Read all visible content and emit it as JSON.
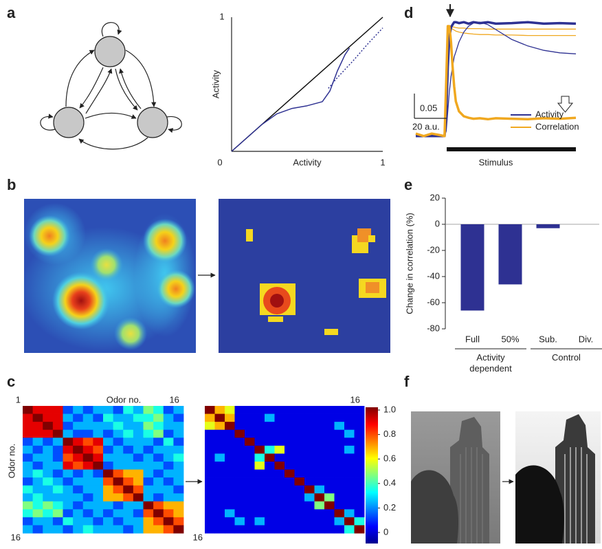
{
  "panel_labels": [
    "a",
    "b",
    "c",
    "d",
    "e",
    "f"
  ],
  "chart_data": [
    {
      "type": "line",
      "xlabel": "Activity",
      "ylabel": "Activity",
      "xlim": [
        0,
        1
      ],
      "ylim": [
        0,
        1
      ],
      "xticks": [
        0,
        1
      ],
      "yticks": [
        1
      ],
      "series": [
        {
          "color": "#111111",
          "x": [
            0,
            1
          ],
          "values": [
            0,
            1
          ]
        },
        {
          "color": "#2e3192",
          "x": [
            0,
            0.1,
            0.2,
            0.3,
            0.4,
            0.5,
            0.6,
            0.65,
            0.7,
            0.75,
            0.78
          ],
          "values": [
            0,
            0.1,
            0.2,
            0.28,
            0.32,
            0.34,
            0.37,
            0.45,
            0.6,
            0.72,
            0.77
          ]
        },
        {
          "color": "#2e3192",
          "dash": true,
          "x": [
            0.64,
            0.7,
            0.8,
            0.9,
            1
          ],
          "values": [
            0.47,
            0.55,
            0.67,
            0.8,
            0.92
          ]
        }
      ]
    },
    {
      "type": "heatmap",
      "xlabel": "Odor no.",
      "ylabel": "Odor no.",
      "xticks": [
        1,
        16
      ],
      "yticks": [
        16
      ],
      "clim": [
        0,
        1
      ],
      "z": [
        [
          1,
          0.9,
          0.9,
          0.9,
          0.2,
          0.3,
          0.2,
          0.3,
          0.3,
          0.2,
          0.4,
          0.3,
          0.5,
          0.4,
          0.2,
          0.3
        ],
        [
          0.9,
          1,
          0.9,
          0.9,
          0.3,
          0.2,
          0.3,
          0.2,
          0.4,
          0.3,
          0.3,
          0.4,
          0.4,
          0.5,
          0.3,
          0.2
        ],
        [
          0.9,
          0.9,
          1,
          0.9,
          0.2,
          0.3,
          0.3,
          0.3,
          0.3,
          0.4,
          0.3,
          0.3,
          0.5,
          0.4,
          0.3,
          0.3
        ],
        [
          0.9,
          0.9,
          0.9,
          1,
          0.3,
          0.2,
          0.2,
          0.3,
          0.2,
          0.3,
          0.4,
          0.3,
          0.4,
          0.5,
          0.2,
          0.3
        ],
        [
          0.2,
          0.3,
          0.2,
          0.3,
          1,
          0.9,
          0.8,
          0.9,
          0.3,
          0.2,
          0.3,
          0.3,
          0.3,
          0.2,
          0.4,
          0.2
        ],
        [
          0.3,
          0.2,
          0.3,
          0.2,
          0.9,
          1,
          0.9,
          0.8,
          0.2,
          0.3,
          0.2,
          0.3,
          0.2,
          0.3,
          0.3,
          0.3
        ],
        [
          0.2,
          0.3,
          0.3,
          0.2,
          0.8,
          0.9,
          1,
          0.9,
          0.3,
          0.3,
          0.3,
          0.2,
          0.3,
          0.2,
          0.3,
          0.4
        ],
        [
          0.3,
          0.2,
          0.3,
          0.3,
          0.9,
          0.8,
          0.9,
          1,
          0.2,
          0.3,
          0.3,
          0.3,
          0.3,
          0.3,
          0.2,
          0.3
        ],
        [
          0.3,
          0.4,
          0.3,
          0.2,
          0.3,
          0.2,
          0.3,
          0.2,
          1,
          0.8,
          0.7,
          0.7,
          0.3,
          0.2,
          0.3,
          0.3
        ],
        [
          0.2,
          0.3,
          0.4,
          0.3,
          0.2,
          0.3,
          0.3,
          0.3,
          0.8,
          1,
          0.8,
          0.7,
          0.2,
          0.3,
          0.2,
          0.3
        ],
        [
          0.4,
          0.3,
          0.3,
          0.4,
          0.3,
          0.2,
          0.3,
          0.3,
          0.7,
          0.8,
          1,
          0.8,
          0.3,
          0.3,
          0.3,
          0.2
        ],
        [
          0.3,
          0.4,
          0.3,
          0.3,
          0.3,
          0.3,
          0.2,
          0.3,
          0.7,
          0.7,
          0.8,
          1,
          0.3,
          0.2,
          0.3,
          0.3
        ],
        [
          0.5,
          0.4,
          0.5,
          0.4,
          0.3,
          0.2,
          0.3,
          0.3,
          0.3,
          0.2,
          0.3,
          0.3,
          1,
          0.8,
          0.7,
          0.7
        ],
        [
          0.4,
          0.5,
          0.4,
          0.5,
          0.2,
          0.3,
          0.2,
          0.3,
          0.2,
          0.3,
          0.3,
          0.2,
          0.8,
          1,
          0.8,
          0.7
        ],
        [
          0.2,
          0.3,
          0.3,
          0.2,
          0.4,
          0.3,
          0.3,
          0.2,
          0.3,
          0.2,
          0.3,
          0.3,
          0.7,
          0.8,
          1,
          0.8
        ],
        [
          0.3,
          0.2,
          0.3,
          0.3,
          0.2,
          0.3,
          0.4,
          0.3,
          0.3,
          0.3,
          0.2,
          0.3,
          0.7,
          0.7,
          0.8,
          1
        ]
      ]
    },
    {
      "type": "heatmap",
      "xticks": [
        16
      ],
      "yticks": [
        16
      ],
      "clim": [
        0,
        1
      ],
      "cticks": [
        0,
        0.2,
        0.4,
        0.6,
        0.8,
        {
          "value": 1,
          "label": "1.0"
        }
      ],
      "z": [
        [
          1,
          0.7,
          0.6,
          0.1,
          0.1,
          0.1,
          0.1,
          0.1,
          0.1,
          0.1,
          0.1,
          0.1,
          0.1,
          0.1,
          0.1,
          0.1
        ],
        [
          0.7,
          1,
          0.7,
          0.1,
          0.1,
          0.1,
          0.3,
          0.1,
          0.1,
          0.1,
          0.1,
          0.1,
          0.1,
          0.1,
          0.1,
          0.1
        ],
        [
          0.6,
          0.7,
          1,
          0.1,
          0.1,
          0.1,
          0.1,
          0.1,
          0.1,
          0.1,
          0.1,
          0.1,
          0.1,
          0.3,
          0.1,
          0.1
        ],
        [
          0.1,
          0.1,
          0.1,
          1,
          0.1,
          0.1,
          0.1,
          0.1,
          0.1,
          0.1,
          0.1,
          0.1,
          0.1,
          0.1,
          0.3,
          0.1
        ],
        [
          0.1,
          0.1,
          0.1,
          0.1,
          1,
          0.1,
          0.1,
          0.1,
          0.1,
          0.1,
          0.1,
          0.1,
          0.1,
          0.1,
          0.1,
          0.1
        ],
        [
          0.1,
          0.1,
          0.1,
          0.1,
          0.1,
          1,
          0.4,
          0.6,
          0.1,
          0.1,
          0.1,
          0.1,
          0.1,
          0.1,
          0.3,
          0.1
        ],
        [
          0.1,
          0.3,
          0.1,
          0.1,
          0.1,
          0.4,
          1,
          0.1,
          0.1,
          0.1,
          0.1,
          0.1,
          0.1,
          0.1,
          0.1,
          0.1
        ],
        [
          0.1,
          0.1,
          0.1,
          0.1,
          0.1,
          0.6,
          0.1,
          1,
          0.1,
          0.1,
          0.1,
          0.1,
          0.1,
          0.1,
          0.1,
          0.1
        ],
        [
          0.1,
          0.1,
          0.1,
          0.1,
          0.1,
          0.1,
          0.1,
          0.1,
          1,
          0.1,
          0.1,
          0.1,
          0.1,
          0.1,
          0.1,
          0.1
        ],
        [
          0.1,
          0.1,
          0.1,
          0.1,
          0.1,
          0.1,
          0.1,
          0.1,
          0.1,
          1,
          0.1,
          0.1,
          0.1,
          0.1,
          0.1,
          0.1
        ],
        [
          0.1,
          0.1,
          0.1,
          0.1,
          0.1,
          0.1,
          0.1,
          0.1,
          0.1,
          0.1,
          1,
          0.3,
          0.1,
          0.1,
          0.1,
          0.1
        ],
        [
          0.1,
          0.1,
          0.1,
          0.1,
          0.1,
          0.1,
          0.1,
          0.1,
          0.1,
          0.1,
          0.3,
          1,
          0.5,
          0.1,
          0.1,
          0.1
        ],
        [
          0.1,
          0.1,
          0.1,
          0.1,
          0.1,
          0.1,
          0.1,
          0.1,
          0.1,
          0.1,
          0.1,
          0.5,
          1,
          0.1,
          0.1,
          0.1
        ],
        [
          0.1,
          0.1,
          0.3,
          0.1,
          0.1,
          0.1,
          0.1,
          0.1,
          0.1,
          0.1,
          0.1,
          0.1,
          0.1,
          1,
          0.3,
          0.1
        ],
        [
          0.1,
          0.1,
          0.1,
          0.3,
          0.1,
          0.3,
          0.1,
          0.1,
          0.1,
          0.1,
          0.1,
          0.1,
          0.1,
          0.3,
          1,
          0.4
        ],
        [
          0.1,
          0.1,
          0.1,
          0.1,
          0.1,
          0.1,
          0.1,
          0.1,
          0.1,
          0.1,
          0.1,
          0.1,
          0.1,
          0.1,
          0.4,
          1
        ]
      ]
    },
    {
      "type": "line",
      "xlabel": "Stimulus",
      "xlim": [
        0,
        100
      ],
      "ylim": [
        0,
        0.25
      ],
      "legend": "lower right",
      "scalebar": {
        "y": 0.05,
        "x": {
          "value": 20,
          "label": "20 a.u."
        }
      },
      "x": [
        0,
        5,
        10,
        15,
        18,
        19,
        20,
        21,
        22,
        23,
        24,
        25,
        27,
        30,
        33,
        36,
        40,
        45,
        50,
        60,
        70,
        80,
        90,
        100
      ],
      "series": [
        {
          "color": "#f0a820",
          "width": 1.3,
          "values": [
            0.01,
            0.01,
            0.01,
            0.01,
            0.01,
            0.12,
            0.23,
            0.232,
            0.231,
            0.23,
            0.23,
            0.229,
            0.228,
            0.228,
            0.227,
            0.227,
            0.227,
            0.226,
            0.226,
            0.226,
            0.226,
            0.226,
            0.226,
            0.226
          ]
        },
        {
          "color": "#f0a820",
          "width": 1.3,
          "values": [
            0.01,
            0.01,
            0.01,
            0.01,
            0.01,
            0.12,
            0.23,
            0.23,
            0.228,
            0.226,
            0.224,
            0.222,
            0.22,
            0.218,
            0.217,
            0.216,
            0.215,
            0.215,
            0.214,
            0.214,
            0.213,
            0.213,
            0.213,
            0.213
          ]
        },
        {
          "color": "#2e3192",
          "width": 1.3,
          "values": [
            0.01,
            0.01,
            0.01,
            0.01,
            0.01,
            0.02,
            0.06,
            0.1,
            0.13,
            0.15,
            0.17,
            0.18,
            0.2,
            0.22,
            0.232,
            0.238,
            0.24,
            0.235,
            0.225,
            0.205,
            0.192,
            0.183,
            0.178,
            0.176
          ]
        },
        {
          "name": "Activity",
          "color": "#2e3192",
          "width": 3.5,
          "values": [
            0.01,
            0.01,
            0.01,
            0.01,
            0.01,
            0.05,
            0.15,
            0.21,
            0.23,
            0.235,
            0.24,
            0.24,
            0.238,
            0.24,
            0.237,
            0.24,
            0.238,
            0.24,
            0.237,
            0.238,
            0.24,
            0.237,
            0.238,
            0.237
          ]
        },
        {
          "name": "Correlation",
          "color": "#f0a820",
          "width": 3.5,
          "values": [
            0.015,
            0.01,
            0.015,
            0.012,
            0.01,
            0.12,
            0.232,
            0.232,
            0.2,
            0.15,
            0.11,
            0.08,
            0.06,
            0.05,
            0.047,
            0.045,
            0.046,
            0.044,
            0.046,
            0.045,
            0.044,
            0.046,
            0.045,
            0.047
          ]
        }
      ]
    },
    {
      "type": "bar",
      "ylabel": "Change in correlation (%)",
      "color": "#2e3192",
      "categories": [
        "Full",
        "50%",
        "Sub.",
        "Div."
      ],
      "values": [
        -66,
        -46,
        -3,
        0
      ],
      "groups": [
        "Activity dependent",
        "Control"
      ],
      "ylim": [
        -80,
        20
      ],
      "yticks": [
        20,
        0,
        -20,
        -40,
        -60,
        -80
      ]
    }
  ]
}
